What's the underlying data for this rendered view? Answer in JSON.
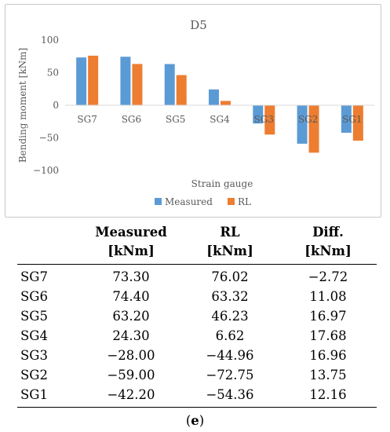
{
  "chart_data": {
    "type": "bar",
    "title": "D5",
    "xlabel": "Strain gauge",
    "ylabel": "Bending moment [kNm]",
    "categories": [
      "SG7",
      "SG6",
      "SG5",
      "SG4",
      "SG3",
      "SG2",
      "SG1"
    ],
    "series": [
      {
        "name": "Measured",
        "color": "#5B9BD5",
        "values": [
          73.3,
          74.4,
          63.2,
          24.3,
          -28.0,
          -59.0,
          -42.2
        ]
      },
      {
        "name": "RL",
        "color": "#ED7D31",
        "values": [
          76.02,
          63.32,
          46.23,
          6.62,
          -44.96,
          -72.75,
          -54.36
        ]
      }
    ],
    "ylim": [
      -100,
      100
    ],
    "yticks": [
      "100",
      "50",
      "0",
      "-50",
      "-100"
    ],
    "grid": false,
    "legend_position": "bottom"
  },
  "table": {
    "headers": [
      {
        "line1": "",
        "line2": ""
      },
      {
        "line1": "Measured",
        "line2": "[kNm]"
      },
      {
        "line1": "RL",
        "line2": "[kNm]"
      },
      {
        "line1": "Diff.",
        "line2": "[kNm]"
      }
    ],
    "rows": [
      [
        "SG7",
        "73.30",
        "76.02",
        "−2.72"
      ],
      [
        "SG6",
        "74.40",
        "63.32",
        "11.08"
      ],
      [
        "SG5",
        "63.20",
        "46.23",
        "16.97"
      ],
      [
        "SG4",
        "24.30",
        "6.62",
        "17.68"
      ],
      [
        "SG3",
        "−28.00",
        "−44.96",
        "16.96"
      ],
      [
        "SG2",
        "−59.00",
        "−72.75",
        "13.75"
      ],
      [
        "SG1",
        "−42.20",
        "−54.36",
        "12.16"
      ]
    ]
  },
  "caption": {
    "open": "(",
    "letter": "e",
    "close": ")"
  }
}
